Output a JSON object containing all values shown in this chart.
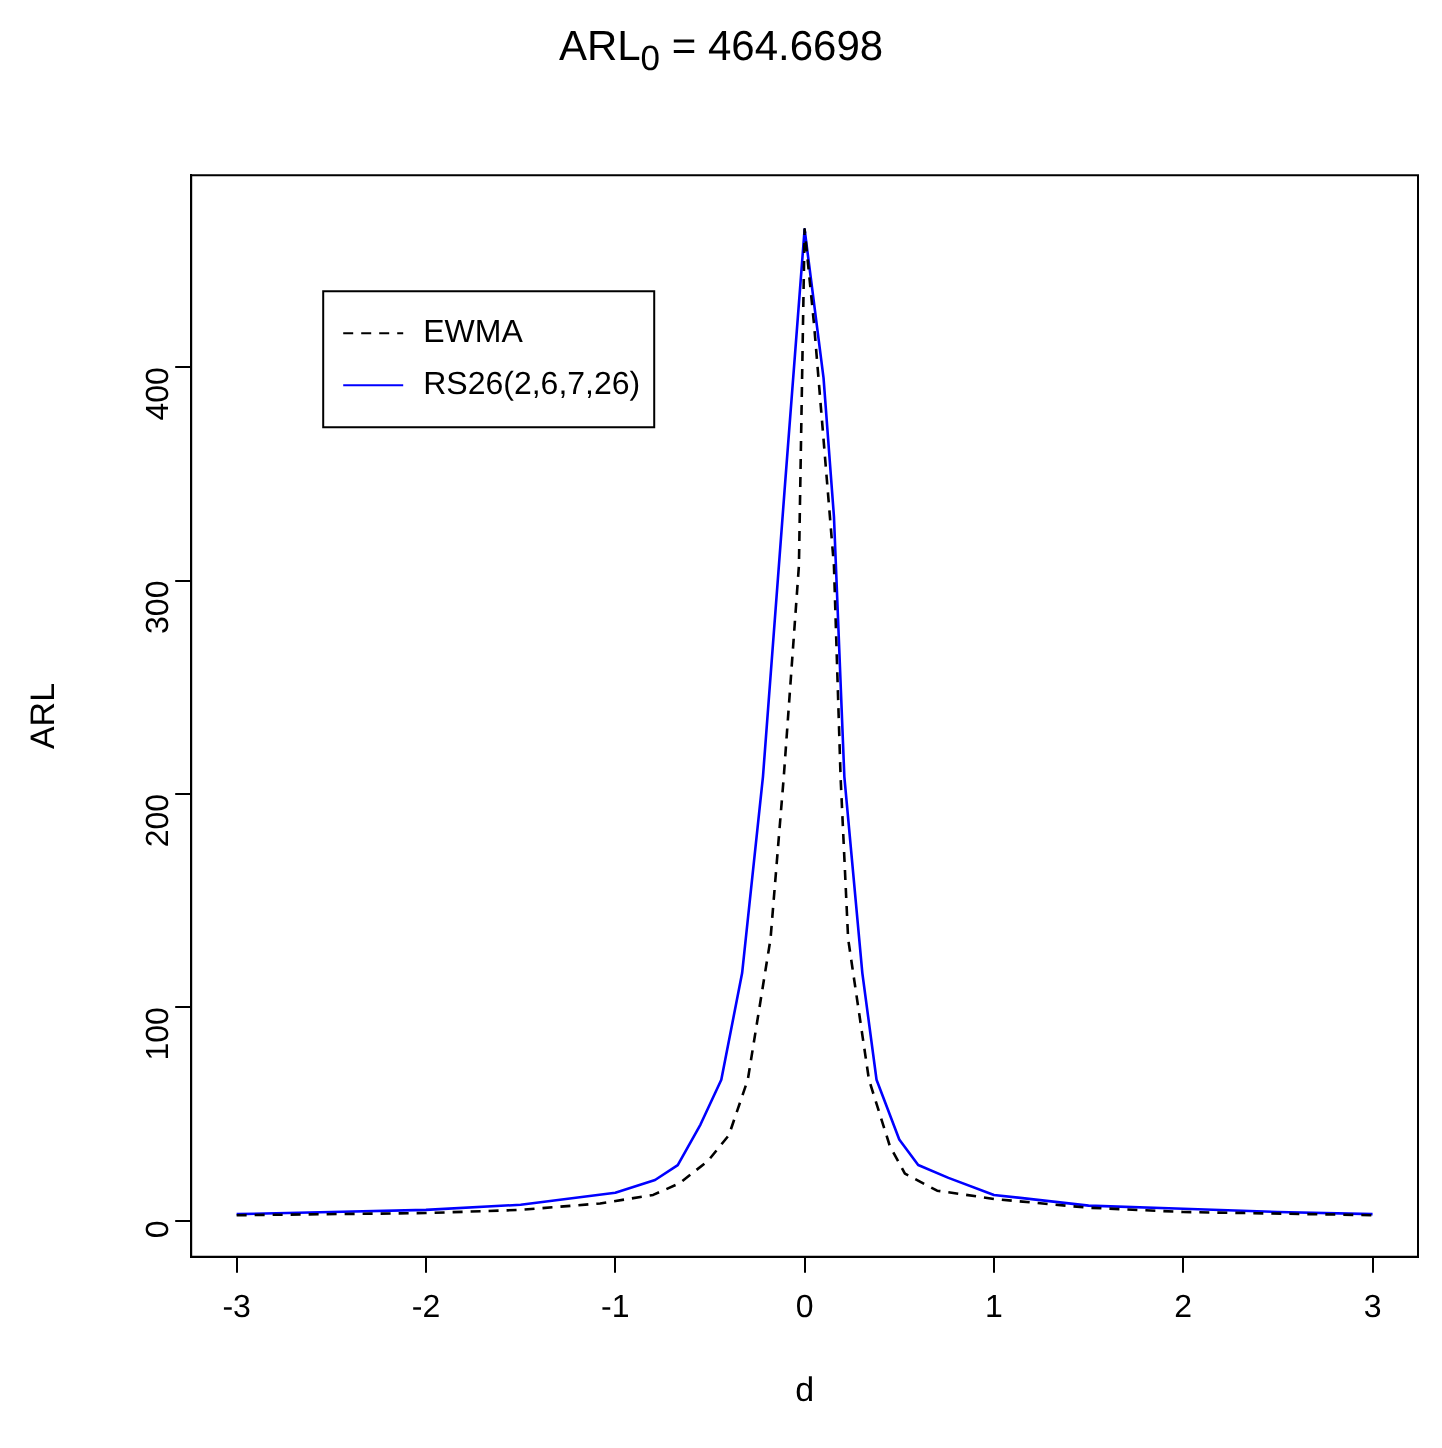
{
  "chart_data": {
    "type": "line",
    "title": "ARL$_{0}$ = 464.6698",
    "xlabel": "d",
    "ylabel": "ARL",
    "xlim": [
      -3.24,
      3.24
    ],
    "xticks": [
      -3,
      -2,
      -1,
      0,
      1,
      2,
      3
    ],
    "ylim": [
      -17,
      490
    ],
    "yticks": [
      0,
      100,
      200,
      300,
      400
    ],
    "grid": false,
    "legend": "top left",
    "marker": "none",
    "series": [
      {
        "name": "EWMA",
        "color": "#000000",
        "line_style": "dashed",
        "x": [
          -3,
          -2,
          -1.5,
          -1.08,
          -0.8,
          -0.66,
          -0.51,
          -0.4,
          -0.3,
          -0.18,
          -0.11,
          -0.03,
          0,
          0.05,
          0.155,
          0.19,
          0.23,
          0.34,
          0.45,
          0.53,
          0.7,
          1.01,
          1.5,
          2,
          3
        ],
        "values": [
          2.5,
          3.5,
          5,
          8,
          12,
          17.5,
          28,
          40,
          66,
          132,
          208,
          307,
          464.67,
          420,
          307,
          208,
          132,
          66,
          35,
          22,
          14,
          10,
          6,
          4,
          2.5
        ]
      },
      {
        "name": "RS26(2,6,7,26)",
        "color": "#0000ff",
        "line_style": "solid",
        "x": [
          -3,
          -2.5,
          -2,
          -1.5,
          -1,
          -0.79,
          -0.67,
          -0.55,
          -0.44,
          -0.33,
          -0.22,
          -0.106,
          0,
          0.1,
          0.155,
          0.21,
          0.305,
          0.38,
          0.5,
          0.6,
          0.76,
          1,
          1.5,
          2,
          2.5,
          3
        ],
        "values": [
          3,
          4,
          5,
          7.4,
          13,
          19,
          26,
          45,
          66,
          116,
          208,
          342,
          464.67,
          395,
          330,
          208,
          116,
          66,
          38,
          26,
          20,
          12,
          7,
          5.5,
          4,
          3
        ]
      }
    ]
  }
}
